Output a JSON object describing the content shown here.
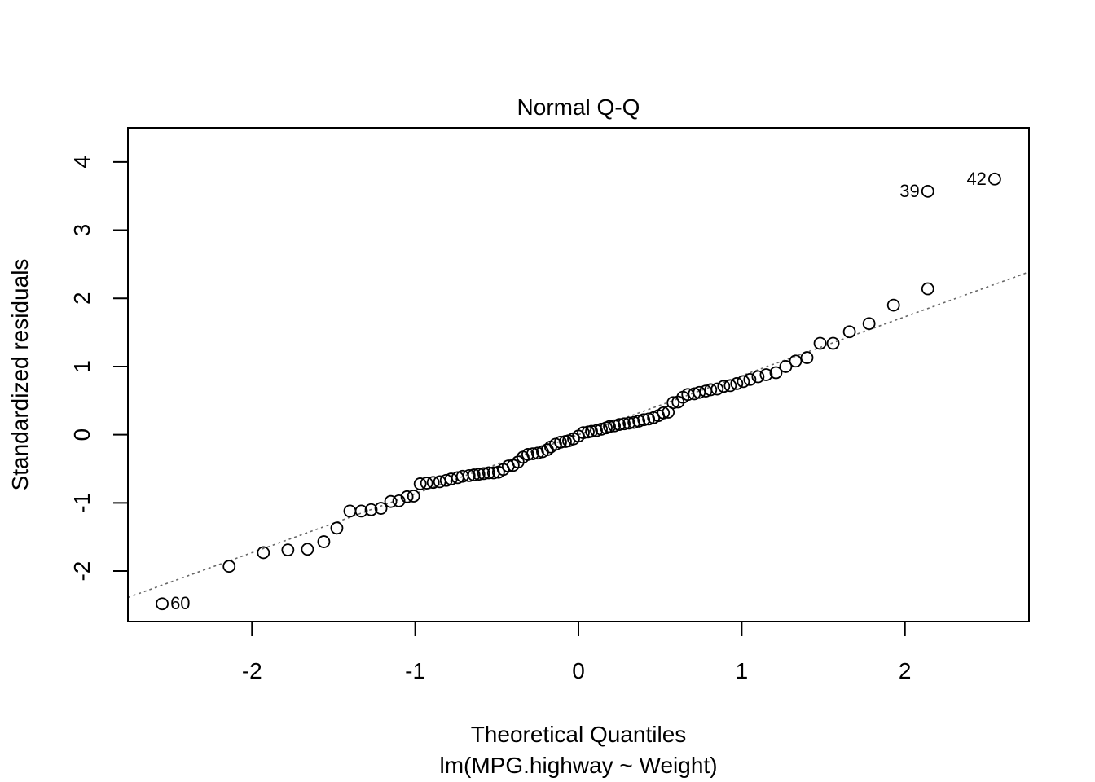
{
  "chart_data": {
    "type": "scatter",
    "title": "Normal Q-Q",
    "xlabel": "Theoretical Quantiles",
    "subtitle": "lm(MPG.highway ~ Weight)",
    "ylabel": "Standardized residuals",
    "xlim": [
      -2.76,
      2.76
    ],
    "ylim": [
      -2.74,
      4.5
    ],
    "x_ticks": [
      -2,
      -1,
      0,
      1,
      2
    ],
    "y_ticks": [
      -2,
      -1,
      0,
      1,
      2,
      3,
      4
    ],
    "x_tick_labels": [
      "-2",
      "-1",
      "0",
      "1",
      "2"
    ],
    "y_tick_labels": [
      "-2",
      "-1",
      "0",
      "1",
      "2",
      "3",
      "4"
    ],
    "grid": false,
    "reference_line": {
      "style": "dotted",
      "color": "#666666",
      "intercept": 0.0,
      "slope": 0.865
    },
    "points": [
      [
        -2.55,
        -2.48
      ],
      [
        -2.14,
        -1.93
      ],
      [
        -1.93,
        -1.73
      ],
      [
        -1.78,
        -1.69
      ],
      [
        -1.66,
        -1.68
      ],
      [
        -1.56,
        -1.57
      ],
      [
        -1.48,
        -1.37
      ],
      [
        -1.4,
        -1.12
      ],
      [
        -1.33,
        -1.12
      ],
      [
        -1.27,
        -1.1
      ],
      [
        -1.21,
        -1.08
      ],
      [
        -1.15,
        -0.98
      ],
      [
        -1.1,
        -0.97
      ],
      [
        -1.05,
        -0.91
      ],
      [
        -1.01,
        -0.9
      ],
      [
        -0.97,
        -0.72
      ],
      [
        -0.93,
        -0.71
      ],
      [
        -0.89,
        -0.7
      ],
      [
        -0.85,
        -0.69
      ],
      [
        -0.81,
        -0.67
      ],
      [
        -0.78,
        -0.65
      ],
      [
        -0.74,
        -0.63
      ],
      [
        -0.71,
        -0.61
      ],
      [
        -0.67,
        -0.6
      ],
      [
        -0.64,
        -0.59
      ],
      [
        -0.61,
        -0.58
      ],
      [
        -0.58,
        -0.57
      ],
      [
        -0.55,
        -0.56
      ],
      [
        -0.52,
        -0.56
      ],
      [
        -0.49,
        -0.55
      ],
      [
        -0.46,
        -0.51
      ],
      [
        -0.43,
        -0.46
      ],
      [
        -0.4,
        -0.45
      ],
      [
        -0.37,
        -0.4
      ],
      [
        -0.34,
        -0.33
      ],
      [
        -0.31,
        -0.29
      ],
      [
        -0.28,
        -0.28
      ],
      [
        -0.25,
        -0.27
      ],
      [
        -0.22,
        -0.25
      ],
      [
        -0.19,
        -0.22
      ],
      [
        -0.17,
        -0.18
      ],
      [
        -0.14,
        -0.14
      ],
      [
        -0.11,
        -0.11
      ],
      [
        -0.08,
        -0.1
      ],
      [
        -0.06,
        -0.09
      ],
      [
        -0.03,
        -0.06
      ],
      [
        0.0,
        -0.02
      ],
      [
        0.03,
        0.03
      ],
      [
        0.06,
        0.04
      ],
      [
        0.08,
        0.05
      ],
      [
        0.11,
        0.06
      ],
      [
        0.14,
        0.08
      ],
      [
        0.17,
        0.1
      ],
      [
        0.19,
        0.12
      ],
      [
        0.22,
        0.13
      ],
      [
        0.25,
        0.15
      ],
      [
        0.28,
        0.16
      ],
      [
        0.31,
        0.17
      ],
      [
        0.34,
        0.18
      ],
      [
        0.37,
        0.2
      ],
      [
        0.4,
        0.22
      ],
      [
        0.43,
        0.23
      ],
      [
        0.46,
        0.25
      ],
      [
        0.49,
        0.28
      ],
      [
        0.52,
        0.32
      ],
      [
        0.55,
        0.33
      ],
      [
        0.58,
        0.47
      ],
      [
        0.61,
        0.48
      ],
      [
        0.64,
        0.55
      ],
      [
        0.67,
        0.59
      ],
      [
        0.71,
        0.6
      ],
      [
        0.74,
        0.62
      ],
      [
        0.78,
        0.64
      ],
      [
        0.81,
        0.66
      ],
      [
        0.85,
        0.67
      ],
      [
        0.89,
        0.71
      ],
      [
        0.93,
        0.72
      ],
      [
        0.97,
        0.75
      ],
      [
        1.01,
        0.78
      ],
      [
        1.05,
        0.81
      ],
      [
        1.1,
        0.85
      ],
      [
        1.15,
        0.88
      ],
      [
        1.21,
        0.91
      ],
      [
        1.27,
        1.0
      ],
      [
        1.33,
        1.08
      ],
      [
        1.4,
        1.13
      ],
      [
        1.48,
        1.34
      ],
      [
        1.56,
        1.34
      ],
      [
        1.66,
        1.51
      ],
      [
        1.78,
        1.63
      ],
      [
        1.93,
        1.9
      ],
      [
        2.14,
        2.14
      ],
      [
        2.14,
        3.57
      ],
      [
        2.55,
        3.75
      ]
    ],
    "point_labels": [
      {
        "text": "60",
        "x": -2.55,
        "y": -2.48,
        "side": "right"
      },
      {
        "text": "39",
        "x": 2.14,
        "y": 3.57,
        "side": "left"
      },
      {
        "text": "42",
        "x": 2.55,
        "y": 3.75,
        "side": "left"
      }
    ]
  }
}
